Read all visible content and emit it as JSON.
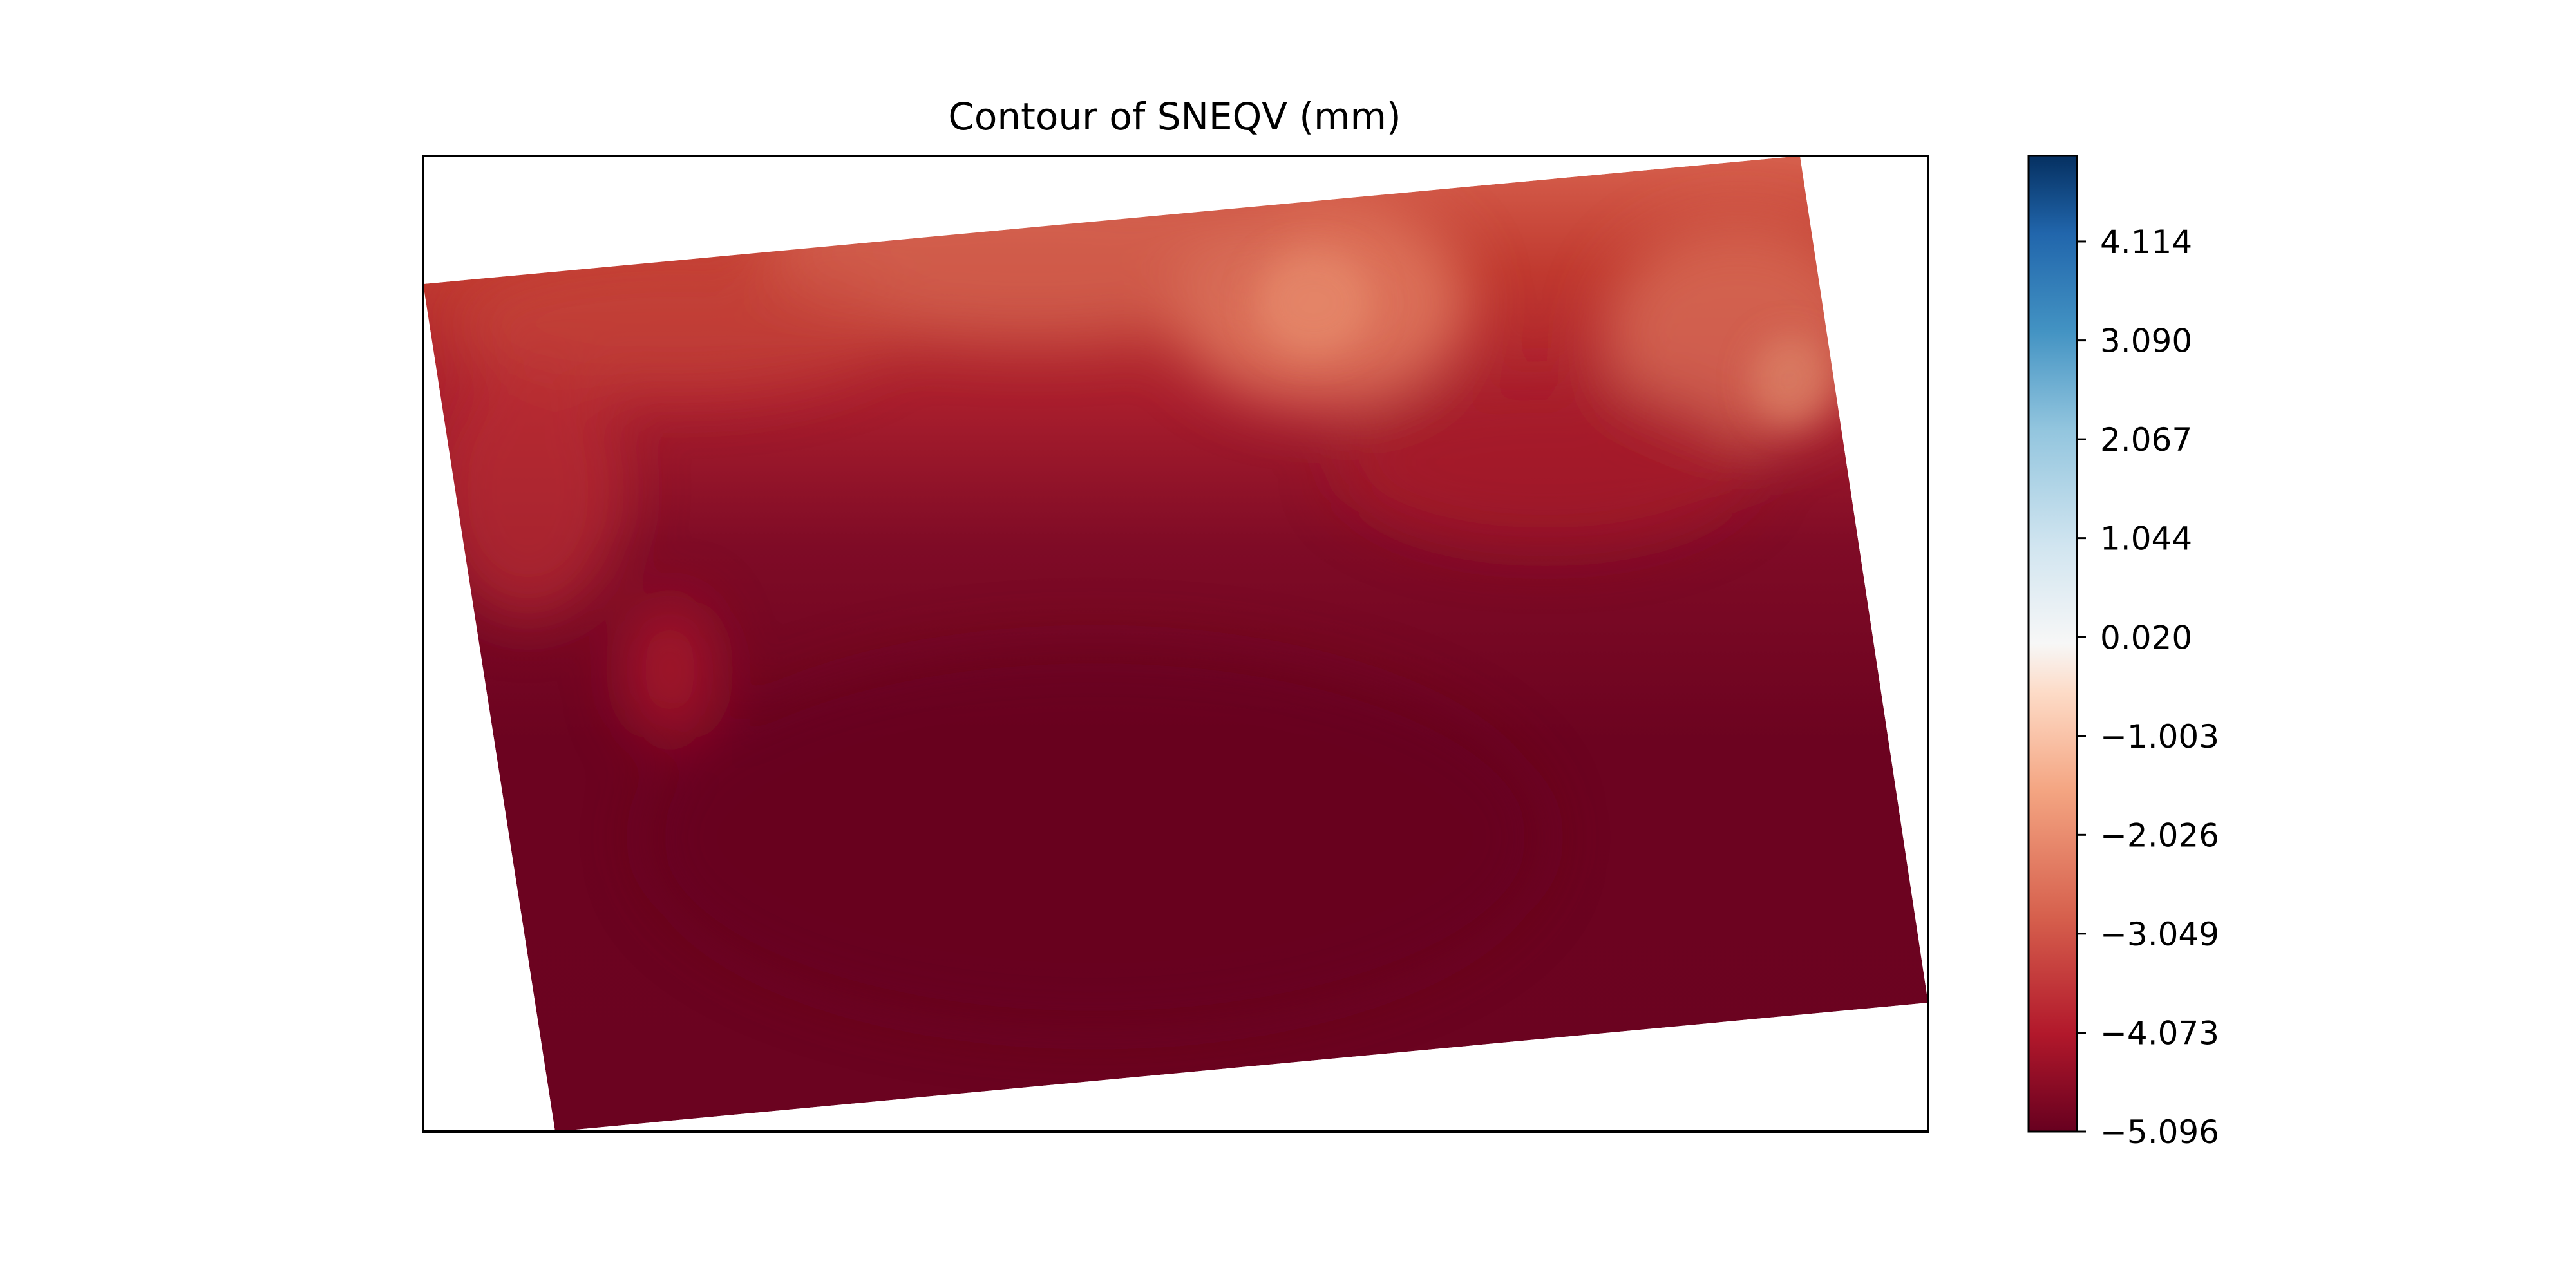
{
  "chart_data": {
    "type": "heatmap",
    "title": "Contour of SNEQV (mm)",
    "xlabel": "",
    "ylabel": "",
    "colorbar": {
      "vmin": -5.096,
      "vmax": 5.0,
      "colormap": "RdBu",
      "ticks": [
        4.114,
        3.09,
        2.067,
        1.044,
        0.02,
        -1.003,
        -2.026,
        -3.049,
        -4.073,
        -5.096
      ],
      "tick_labels": [
        "4.114",
        "3.090",
        "2.067",
        "1.044",
        "0.020",
        "−1.003",
        "−2.026",
        "−3.049",
        "−4.073",
        "−5.096"
      ]
    },
    "grid": false,
    "legend": "colorbar right",
    "field_description": "values mostly near -5 mm in south and center, rising to about -3 mm along northern edge",
    "colors": {
      "darkest": "#67001f",
      "dark": "#7a0a25",
      "mid": "#b2182b",
      "light": "#d6604d",
      "lightest": "#e58064"
    }
  }
}
